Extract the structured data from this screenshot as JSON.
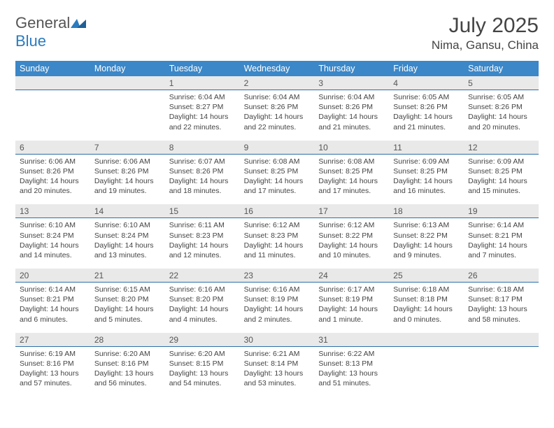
{
  "brand": {
    "text": "General",
    "accent": "Blue",
    "shape_color": "#2b7bbf",
    "text_color": "#555555"
  },
  "header": {
    "title": "July 2025",
    "location": "Nima, Gansu, China"
  },
  "style": {
    "dow_bg": "#3b87c8",
    "dow_text": "#ffffff",
    "daynum_bg": "#e9e9e9",
    "daynum_border": "#2b6fa8",
    "body_text": "#444444",
    "page_bg": "#ffffff",
    "month_fontsize": 30,
    "location_fontsize": 17,
    "dow_fontsize": 12.5,
    "daynum_fontsize": 12,
    "cell_fontsize": 10.5
  },
  "dow": [
    "Sunday",
    "Monday",
    "Tuesday",
    "Wednesday",
    "Thursday",
    "Friday",
    "Saturday"
  ],
  "weeks": [
    [
      {
        "n": "",
        "sunrise": "",
        "sunset": "",
        "daylight": ""
      },
      {
        "n": "",
        "sunrise": "",
        "sunset": "",
        "daylight": ""
      },
      {
        "n": "1",
        "sunrise": "Sunrise: 6:04 AM",
        "sunset": "Sunset: 8:27 PM",
        "daylight": "Daylight: 14 hours and 22 minutes."
      },
      {
        "n": "2",
        "sunrise": "Sunrise: 6:04 AM",
        "sunset": "Sunset: 8:26 PM",
        "daylight": "Daylight: 14 hours and 22 minutes."
      },
      {
        "n": "3",
        "sunrise": "Sunrise: 6:04 AM",
        "sunset": "Sunset: 8:26 PM",
        "daylight": "Daylight: 14 hours and 21 minutes."
      },
      {
        "n": "4",
        "sunrise": "Sunrise: 6:05 AM",
        "sunset": "Sunset: 8:26 PM",
        "daylight": "Daylight: 14 hours and 21 minutes."
      },
      {
        "n": "5",
        "sunrise": "Sunrise: 6:05 AM",
        "sunset": "Sunset: 8:26 PM",
        "daylight": "Daylight: 14 hours and 20 minutes."
      }
    ],
    [
      {
        "n": "6",
        "sunrise": "Sunrise: 6:06 AM",
        "sunset": "Sunset: 8:26 PM",
        "daylight": "Daylight: 14 hours and 20 minutes."
      },
      {
        "n": "7",
        "sunrise": "Sunrise: 6:06 AM",
        "sunset": "Sunset: 8:26 PM",
        "daylight": "Daylight: 14 hours and 19 minutes."
      },
      {
        "n": "8",
        "sunrise": "Sunrise: 6:07 AM",
        "sunset": "Sunset: 8:26 PM",
        "daylight": "Daylight: 14 hours and 18 minutes."
      },
      {
        "n": "9",
        "sunrise": "Sunrise: 6:08 AM",
        "sunset": "Sunset: 8:25 PM",
        "daylight": "Daylight: 14 hours and 17 minutes."
      },
      {
        "n": "10",
        "sunrise": "Sunrise: 6:08 AM",
        "sunset": "Sunset: 8:25 PM",
        "daylight": "Daylight: 14 hours and 17 minutes."
      },
      {
        "n": "11",
        "sunrise": "Sunrise: 6:09 AM",
        "sunset": "Sunset: 8:25 PM",
        "daylight": "Daylight: 14 hours and 16 minutes."
      },
      {
        "n": "12",
        "sunrise": "Sunrise: 6:09 AM",
        "sunset": "Sunset: 8:25 PM",
        "daylight": "Daylight: 14 hours and 15 minutes."
      }
    ],
    [
      {
        "n": "13",
        "sunrise": "Sunrise: 6:10 AM",
        "sunset": "Sunset: 8:24 PM",
        "daylight": "Daylight: 14 hours and 14 minutes."
      },
      {
        "n": "14",
        "sunrise": "Sunrise: 6:10 AM",
        "sunset": "Sunset: 8:24 PM",
        "daylight": "Daylight: 14 hours and 13 minutes."
      },
      {
        "n": "15",
        "sunrise": "Sunrise: 6:11 AM",
        "sunset": "Sunset: 8:23 PM",
        "daylight": "Daylight: 14 hours and 12 minutes."
      },
      {
        "n": "16",
        "sunrise": "Sunrise: 6:12 AM",
        "sunset": "Sunset: 8:23 PM",
        "daylight": "Daylight: 14 hours and 11 minutes."
      },
      {
        "n": "17",
        "sunrise": "Sunrise: 6:12 AM",
        "sunset": "Sunset: 8:22 PM",
        "daylight": "Daylight: 14 hours and 10 minutes."
      },
      {
        "n": "18",
        "sunrise": "Sunrise: 6:13 AM",
        "sunset": "Sunset: 8:22 PM",
        "daylight": "Daylight: 14 hours and 9 minutes."
      },
      {
        "n": "19",
        "sunrise": "Sunrise: 6:14 AM",
        "sunset": "Sunset: 8:21 PM",
        "daylight": "Daylight: 14 hours and 7 minutes."
      }
    ],
    [
      {
        "n": "20",
        "sunrise": "Sunrise: 6:14 AM",
        "sunset": "Sunset: 8:21 PM",
        "daylight": "Daylight: 14 hours and 6 minutes."
      },
      {
        "n": "21",
        "sunrise": "Sunrise: 6:15 AM",
        "sunset": "Sunset: 8:20 PM",
        "daylight": "Daylight: 14 hours and 5 minutes."
      },
      {
        "n": "22",
        "sunrise": "Sunrise: 6:16 AM",
        "sunset": "Sunset: 8:20 PM",
        "daylight": "Daylight: 14 hours and 4 minutes."
      },
      {
        "n": "23",
        "sunrise": "Sunrise: 6:16 AM",
        "sunset": "Sunset: 8:19 PM",
        "daylight": "Daylight: 14 hours and 2 minutes."
      },
      {
        "n": "24",
        "sunrise": "Sunrise: 6:17 AM",
        "sunset": "Sunset: 8:19 PM",
        "daylight": "Daylight: 14 hours and 1 minute."
      },
      {
        "n": "25",
        "sunrise": "Sunrise: 6:18 AM",
        "sunset": "Sunset: 8:18 PM",
        "daylight": "Daylight: 14 hours and 0 minutes."
      },
      {
        "n": "26",
        "sunrise": "Sunrise: 6:18 AM",
        "sunset": "Sunset: 8:17 PM",
        "daylight": "Daylight: 13 hours and 58 minutes."
      }
    ],
    [
      {
        "n": "27",
        "sunrise": "Sunrise: 6:19 AM",
        "sunset": "Sunset: 8:16 PM",
        "daylight": "Daylight: 13 hours and 57 minutes."
      },
      {
        "n": "28",
        "sunrise": "Sunrise: 6:20 AM",
        "sunset": "Sunset: 8:16 PM",
        "daylight": "Daylight: 13 hours and 56 minutes."
      },
      {
        "n": "29",
        "sunrise": "Sunrise: 6:20 AM",
        "sunset": "Sunset: 8:15 PM",
        "daylight": "Daylight: 13 hours and 54 minutes."
      },
      {
        "n": "30",
        "sunrise": "Sunrise: 6:21 AM",
        "sunset": "Sunset: 8:14 PM",
        "daylight": "Daylight: 13 hours and 53 minutes."
      },
      {
        "n": "31",
        "sunrise": "Sunrise: 6:22 AM",
        "sunset": "Sunset: 8:13 PM",
        "daylight": "Daylight: 13 hours and 51 minutes."
      },
      {
        "n": "",
        "sunrise": "",
        "sunset": "",
        "daylight": ""
      },
      {
        "n": "",
        "sunrise": "",
        "sunset": "",
        "daylight": ""
      }
    ]
  ]
}
